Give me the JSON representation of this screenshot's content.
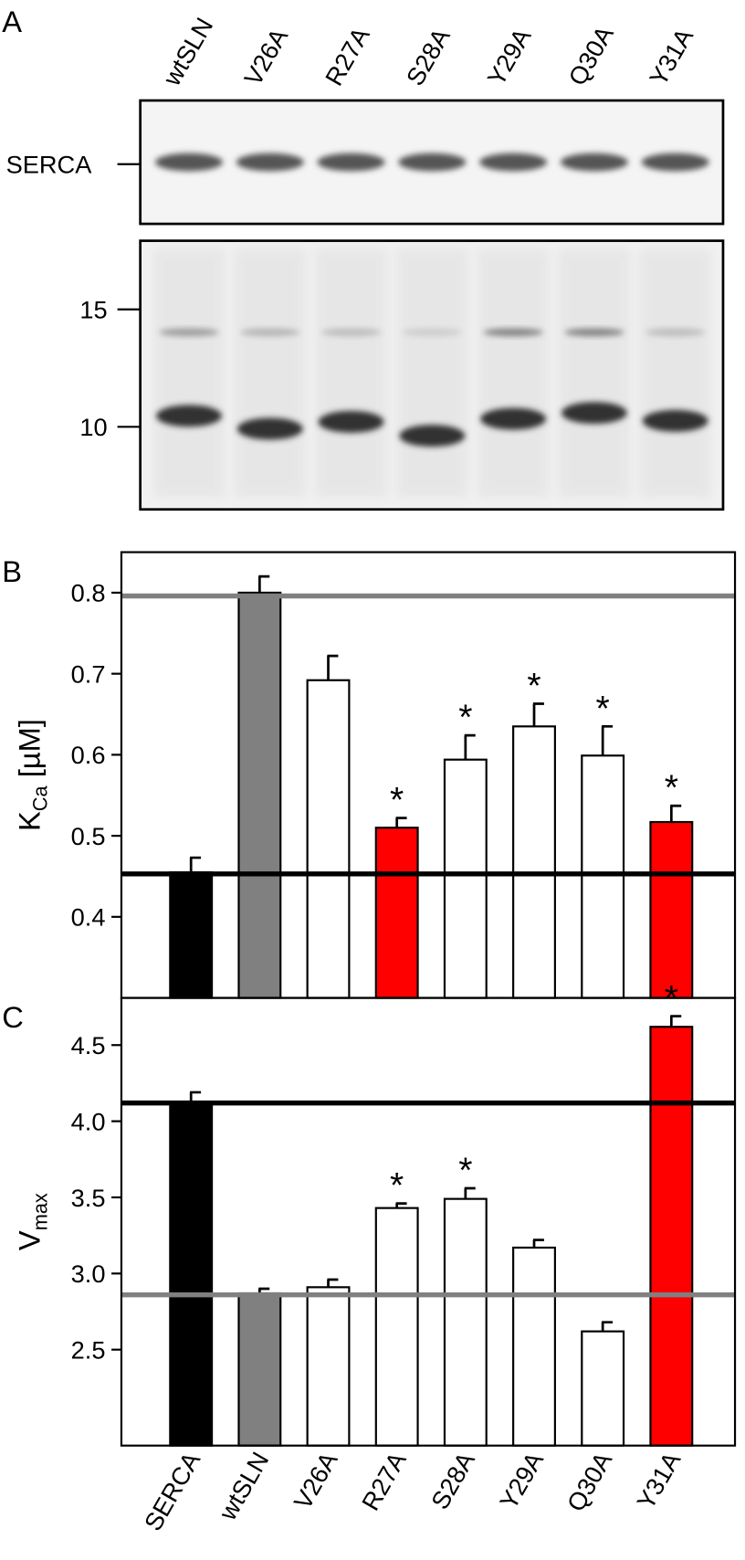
{
  "blot": {
    "label": "A",
    "lanes": [
      "wtSLN",
      "V26A",
      "R27A",
      "S28A",
      "Y29A",
      "Q30A",
      "Y31A"
    ],
    "band_label": "SERCA",
    "markers": [
      15,
      10
    ]
  },
  "chart_data": {
    "type": "bar",
    "categories": [
      "SERCA",
      "wtSLN",
      "V26A",
      "R27A",
      "S28A",
      "Y29A",
      "Q30A",
      "Y31A"
    ],
    "colors": [
      "#000000",
      "#808080",
      "#ffffff",
      "#ffffff",
      "#ffffff",
      "#ffffff",
      "#ffffff",
      "#ff0000"
    ],
    "panels": [
      {
        "label": "B",
        "ylabel": {
          "main": "K",
          "sub": "Ca",
          "unit": "[µM]"
        },
        "colors": [
          "#000000",
          "#808080",
          "#ffffff",
          "#ff0000",
          "#ffffff",
          "#ffffff",
          "#ffffff",
          "#ff0000"
        ],
        "values": [
          0.455,
          0.8,
          0.692,
          0.51,
          0.594,
          0.635,
          0.599,
          0.517
        ],
        "errors": [
          0.018,
          0.02,
          0.03,
          0.012,
          0.03,
          0.028,
          0.036,
          0.02
        ],
        "significance": [
          null,
          null,
          null,
          "*",
          "*",
          "*",
          "*",
          "*"
        ],
        "reference_lines": [
          {
            "value": 0.453,
            "color": "#000000"
          },
          {
            "value": 0.796,
            "color": "#808080"
          }
        ],
        "ylim": [
          0.3,
          0.85
        ],
        "yticks": [
          0.4,
          0.5,
          0.6,
          0.7,
          0.8
        ]
      },
      {
        "label": "C",
        "ylabel": {
          "main": "V",
          "sub": "max"
        },
        "colors": [
          "#000000",
          "#808080",
          "#ffffff",
          "#ffffff",
          "#ffffff",
          "#ffffff",
          "#ffffff",
          "#ff0000"
        ],
        "values": [
          4.12,
          2.87,
          2.91,
          3.43,
          3.49,
          3.17,
          2.62,
          4.62
        ],
        "errors": [
          0.07,
          0.03,
          0.05,
          0.03,
          0.07,
          0.05,
          0.06,
          0.07
        ],
        "significance": [
          null,
          null,
          null,
          "*",
          "*",
          null,
          null,
          "*"
        ],
        "reference_lines": [
          {
            "value": 4.12,
            "color": "#000000"
          },
          {
            "value": 2.86,
            "color": "#808080"
          }
        ],
        "ylim": [
          1.87,
          4.81
        ],
        "yticks": [
          2.5,
          3.0,
          3.5,
          4.0,
          4.5
        ]
      }
    ]
  }
}
